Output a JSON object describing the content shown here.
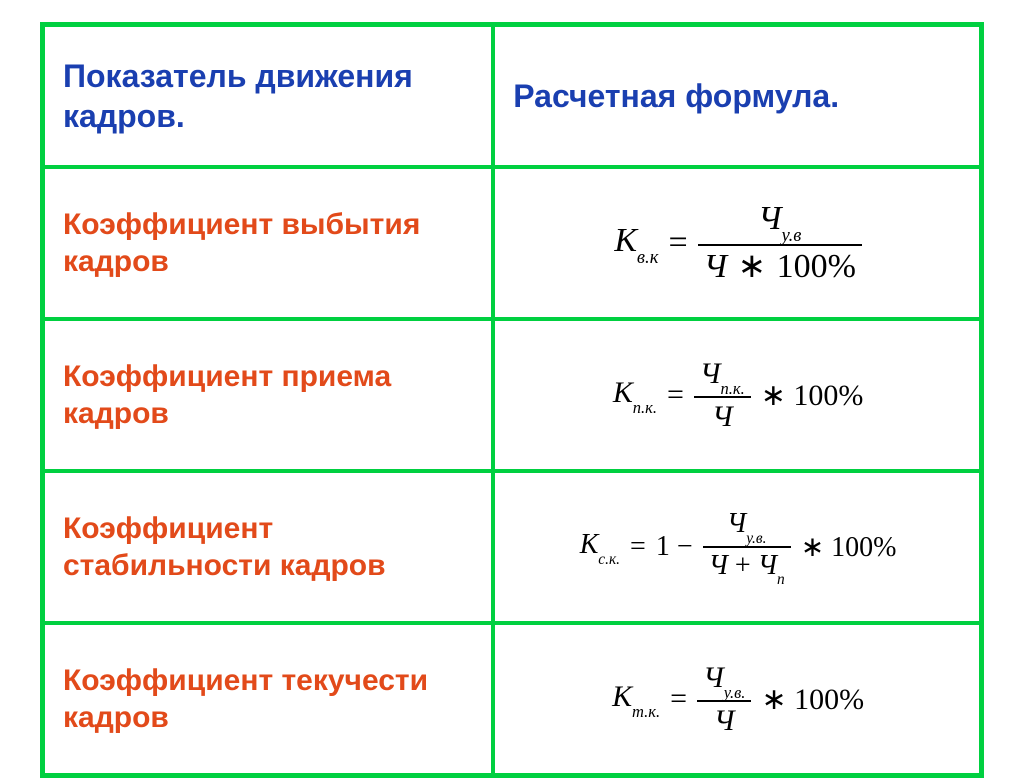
{
  "table": {
    "border_color": "#00d040",
    "header": {
      "left": "Показатель движения кадров.",
      "right": "Расчетная формула.",
      "text_color": "#1a3fb0",
      "fontsize": 32
    },
    "label_color": "#e24a1a",
    "label_fontsize": 30,
    "rows": [
      {
        "label": "Коэффициент выбытия кадров",
        "formula": {
          "lhs_base": "К",
          "lhs_sub": "в.к",
          "type": "frac",
          "num_base": "Ч",
          "num_sub": "у.в",
          "den_text": "Ч ∗ 100%",
          "tail": ""
        }
      },
      {
        "label": "Коэффициент  приема кадров",
        "formula": {
          "lhs_base": "К",
          "lhs_sub": "п.к.",
          "type": "frac",
          "num_base": "Ч",
          "num_sub": "п.к.",
          "den_text": "Ч",
          "tail": "∗ 100%"
        }
      },
      {
        "label": "Коэффициент стабильности кадров",
        "formula": {
          "lhs_base": "К",
          "lhs_sub": "с.к.",
          "type": "one_minus_frac",
          "num_base": "Ч",
          "num_sub": "у.в.",
          "den_text": "Ч + Чп",
          "den_has_sub": true,
          "tail": "∗ 100%"
        }
      },
      {
        "label": "Коэффициент текучести кадров",
        "formula": {
          "lhs_base": "К",
          "lhs_sub": "т.к.",
          "type": "frac",
          "num_base": "Ч",
          "num_sub": "у.в.",
          "den_text": "Ч",
          "tail": "∗ 100%"
        }
      }
    ]
  }
}
